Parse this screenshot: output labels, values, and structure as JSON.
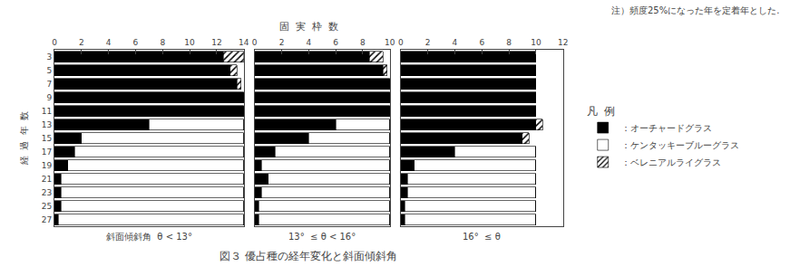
{
  "chart_data": {
    "type": "bar",
    "orientation": "horizontal",
    "stacked": true,
    "grid": false,
    "title": "図３ 優占種の経年変化と斜面傾斜角",
    "annotations": [
      "注）頻度25%になった年を定着年とした."
    ],
    "xlabel": "固  実  枠  数",
    "ylabel": "経  過  年  数",
    "legend_title": "凡  例",
    "categories": [
      3,
      5,
      7,
      9,
      11,
      13,
      15,
      17,
      19,
      21,
      23,
      25,
      27
    ],
    "panels": [
      {
        "xlabel": "斜面傾斜角  θ < 13°",
        "xlim": [
          0,
          14
        ],
        "xticks": [
          0,
          2,
          4,
          6,
          8,
          10,
          12,
          14
        ],
        "series": [
          {
            "name": "：オーチャードグラス",
            "color": "black",
            "values": [
              12.5,
              13,
              13.5,
              14,
              14,
              7,
              2,
              1.5,
              1,
              0.5,
              0.5,
              0.5,
              0.3
            ]
          },
          {
            "name": "：ケンタッキーブルーグラス",
            "color": "white",
            "values": [
              0,
              0,
              0,
              0,
              0,
              7,
              12,
              12.5,
              13,
              13.5,
              13.5,
              13.5,
              13.7
            ]
          },
          {
            "name": "：ベレニアルライグラス",
            "color": "white",
            "hatch": "////",
            "values": [
              1.5,
              0.5,
              0.3,
              0,
              0,
              0,
              0,
              0,
              0,
              0,
              0,
              0,
              0
            ]
          }
        ]
      },
      {
        "xlabel": "13°  ≤ θ < 16°",
        "xlim": [
          0,
          10
        ],
        "xticks": [
          0,
          2,
          4,
          6,
          8,
          10
        ],
        "series": [
          {
            "name": "：オーチャードグラス",
            "color": "black",
            "values": [
              8.5,
              9.5,
              10,
              10,
              10,
              6,
              4,
              1.5,
              0.5,
              1,
              0.5,
              0.3,
              0.3
            ]
          },
          {
            "name": "：ケンタッキーブルーグラス",
            "color": "white",
            "values": [
              0,
              0,
              0,
              0,
              0,
              4,
              6,
              8.5,
              9.5,
              9,
              9.5,
              9.7,
              9.7
            ]
          },
          {
            "name": "：ベレニアルライグラス",
            "color": "white",
            "hatch": "////",
            "values": [
              1.0,
              0.3,
              0,
              0,
              0,
              0,
              0,
              0,
              0,
              0,
              0,
              0,
              0
            ]
          }
        ]
      },
      {
        "xlabel": "16°  ≤ θ",
        "xlim": [
          0,
          12
        ],
        "xticks": [
          0,
          2,
          4,
          6,
          8,
          10,
          12
        ],
        "series": [
          {
            "name": "：オーチャードグラス",
            "color": "black",
            "values": [
              10,
              10,
              10,
              10,
              10,
              10,
              9,
              4,
              1,
              0.5,
              0.5,
              0.3,
              0.3
            ]
          },
          {
            "name": "：ケンタッキーブルーグラス",
            "color": "white",
            "values": [
              0,
              0,
              0,
              0,
              0,
              0,
              0,
              6,
              9,
              9.5,
              9.5,
              9.7,
              9.7
            ]
          },
          {
            "name": "：ベレニアルライグラス",
            "color": "white",
            "hatch": "////",
            "values": [
              0,
              0,
              0,
              0,
              0,
              0.5,
              0.5,
              0,
              0,
              0,
              0,
              0,
              0
            ]
          }
        ]
      }
    ]
  }
}
